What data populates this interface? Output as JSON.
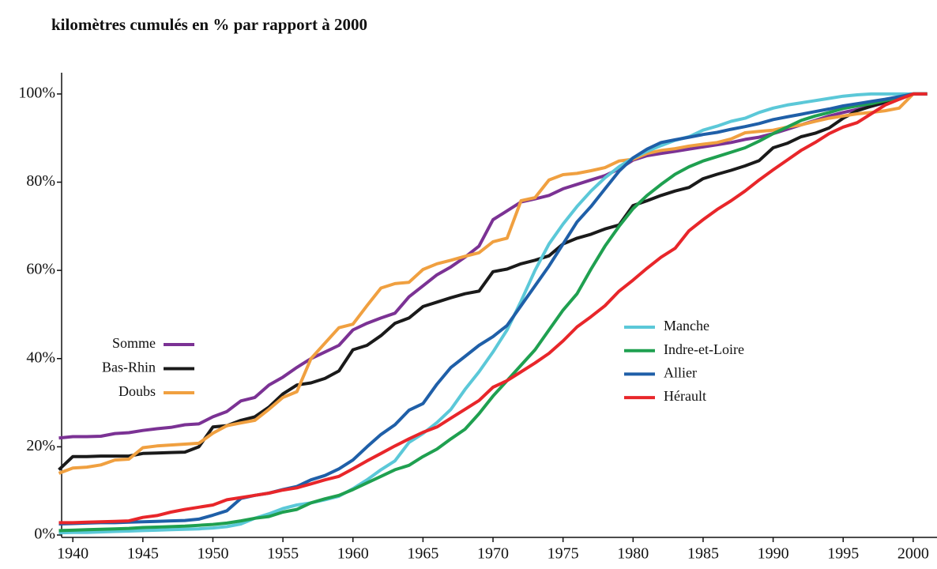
{
  "chart_data": {
    "type": "line",
    "title": "kilomètres cumulés en % par rapport à 2000",
    "x": [
      1939,
      1940,
      1941,
      1942,
      1943,
      1944,
      1945,
      1946,
      1947,
      1948,
      1949,
      1950,
      1951,
      1952,
      1953,
      1954,
      1955,
      1956,
      1957,
      1958,
      1959,
      1960,
      1961,
      1962,
      1963,
      1964,
      1965,
      1966,
      1967,
      1968,
      1969,
      1970,
      1971,
      1972,
      1973,
      1974,
      1975,
      1976,
      1977,
      1978,
      1979,
      1980,
      1981,
      1982,
      1983,
      1984,
      1985,
      1986,
      1987,
      1988,
      1989,
      1990,
      1991,
      1992,
      1993,
      1994,
      1995,
      1996,
      1997,
      1998,
      1999,
      2000,
      2001
    ],
    "xlim": [
      1939.2,
      2001.7
    ],
    "xticks": [
      1940,
      1945,
      1950,
      1955,
      1960,
      1965,
      1970,
      1975,
      1980,
      1985,
      1990,
      1995,
      2000
    ],
    "ylim": [
      0,
      105
    ],
    "yticks": [
      {
        "value": 0,
        "label": "0%"
      },
      {
        "value": 20,
        "label": "20%"
      },
      {
        "value": 40,
        "label": "40%"
      },
      {
        "value": 60,
        "label": "60%"
      },
      {
        "value": 80,
        "label": "80%"
      },
      {
        "value": 100,
        "label": "100%"
      }
    ],
    "series": [
      {
        "name": "Somme",
        "color": "#7b3294",
        "values": [
          22,
          22.3,
          22.3,
          22.4,
          23,
          23.2,
          23.7,
          24.1,
          24.4,
          25,
          25.2,
          26.8,
          28,
          30.4,
          31.2,
          34,
          35.8,
          38,
          40,
          41.5,
          43,
          46.5,
          48,
          49.2,
          50.3,
          54,
          56.5,
          59,
          60.8,
          63,
          65.5,
          71.5,
          73.5,
          75.5,
          76.2,
          77,
          78.5,
          79.5,
          80.5,
          81.5,
          83,
          85,
          86,
          86.5,
          87,
          87.5,
          88,
          88.5,
          89,
          89.7,
          90.2,
          91,
          92,
          93,
          94,
          95,
          95.8,
          96.5,
          97.2,
          98,
          98.8,
          100,
          100
        ]
      },
      {
        "name": "Bas-Rhin",
        "color": "#1a1a1a",
        "values": [
          14.8,
          17.8,
          17.8,
          17.9,
          17.9,
          17.9,
          18.5,
          18.6,
          18.7,
          18.8,
          20,
          24.5,
          24.8,
          26,
          26.8,
          29,
          32,
          34,
          34.5,
          35.5,
          37.2,
          42,
          43,
          45.2,
          48,
          49.2,
          51.8,
          52.8,
          53.8,
          54.7,
          55.3,
          59.7,
          60.3,
          61.5,
          62.3,
          63.3,
          66,
          67.3,
          68.2,
          69.4,
          70.3,
          74.7,
          75.8,
          77,
          78,
          78.8,
          80.8,
          81.8,
          82.7,
          83.7,
          84.9,
          87.8,
          88.8,
          90.3,
          91.1,
          92.3,
          94.5,
          96.2,
          97.2,
          98.2,
          99.2,
          100,
          100
        ]
      },
      {
        "name": "Doubs",
        "color": "#f0a040",
        "values": [
          14,
          15.2,
          15.4,
          15.9,
          17,
          17.2,
          19.8,
          20.2,
          20.4,
          20.6,
          20.8,
          23.1,
          24.8,
          25.4,
          26,
          28.5,
          31.2,
          32.5,
          40,
          43.5,
          47,
          47.8,
          52,
          56,
          57,
          57.3,
          60.2,
          61.5,
          62.3,
          63.2,
          64,
          66.5,
          67.3,
          75.8,
          76.5,
          80.5,
          81.7,
          82,
          82.6,
          83.3,
          84.8,
          85.2,
          86.5,
          87.2,
          87.6,
          88.2,
          88.6,
          89,
          89.8,
          91.2,
          91.5,
          91.8,
          92.5,
          93,
          93.8,
          94.5,
          95,
          95.5,
          95.8,
          96.2,
          96.8,
          100,
          100
        ]
      },
      {
        "name": "Manche",
        "color": "#5bc8d8",
        "values": [
          0.5,
          0.6,
          0.6,
          0.7,
          0.8,
          0.9,
          1,
          1.1,
          1.2,
          1.3,
          1.4,
          1.6,
          1.9,
          2.5,
          3.8,
          4.8,
          6,
          6.8,
          7.3,
          8,
          8.8,
          10.5,
          12.5,
          14.8,
          16.8,
          21,
          23,
          25.5,
          28.5,
          33,
          37,
          41.5,
          46.5,
          53,
          60,
          66,
          70.5,
          74.5,
          78,
          81,
          83.5,
          85.5,
          87,
          88.3,
          89.5,
          90.3,
          91.8,
          92.7,
          93.8,
          94.5,
          95.8,
          96.8,
          97.5,
          98,
          98.5,
          99,
          99.5,
          99.8,
          100,
          100,
          100,
          100,
          100
        ]
      },
      {
        "name": "Indre-et-Loire",
        "color": "#1fa050",
        "values": [
          1,
          1.1,
          1.2,
          1.3,
          1.4,
          1.5,
          1.7,
          1.8,
          1.9,
          2,
          2.2,
          2.4,
          2.7,
          3.2,
          3.8,
          4.2,
          5.2,
          5.8,
          7.3,
          8.2,
          9,
          10.3,
          11.8,
          13.3,
          14.8,
          15.8,
          17.8,
          19.5,
          21.8,
          24,
          27.5,
          31.5,
          35,
          38.5,
          42,
          46.5,
          51,
          54.7,
          60.3,
          65.5,
          70,
          74,
          77,
          79.5,
          81.8,
          83.5,
          84.8,
          85.8,
          86.8,
          87.8,
          89.3,
          91,
          92.5,
          94,
          95,
          95.8,
          96.7,
          97.3,
          97.8,
          98.5,
          99.2,
          100,
          100
        ]
      },
      {
        "name": "Allier",
        "color": "#1f5fa8",
        "values": [
          2.5,
          2.6,
          2.7,
          2.8,
          2.8,
          2.9,
          3,
          3.1,
          3.2,
          3.3,
          3.6,
          4.5,
          5.5,
          8.3,
          9,
          9.5,
          10.3,
          11,
          12.5,
          13.5,
          15,
          17,
          20,
          22.8,
          25,
          28.3,
          29.8,
          34.2,
          38,
          40.5,
          43,
          45,
          47.5,
          52,
          56.5,
          61,
          66,
          71,
          74.5,
          78.5,
          82.5,
          85.5,
          87.5,
          89,
          89.6,
          90.2,
          90.8,
          91.3,
          92,
          92.6,
          93.3,
          94.2,
          94.8,
          95.4,
          96,
          96.6,
          97.3,
          97.8,
          98.3,
          98.8,
          99.4,
          100,
          100
        ]
      },
      {
        "name": "Hérault",
        "color": "#e8262a",
        "values": [
          2.8,
          2.8,
          2.9,
          3,
          3.1,
          3.2,
          4,
          4.4,
          5.2,
          5.8,
          6.3,
          6.8,
          8,
          8.5,
          9,
          9.5,
          10.2,
          10.7,
          11.6,
          12.5,
          13.3,
          15,
          16.8,
          18.5,
          20.2,
          21.8,
          23.3,
          24.5,
          26.5,
          28.5,
          30.5,
          33.5,
          35,
          37,
          39,
          41.2,
          44,
          47.2,
          49.5,
          52,
          55.3,
          57.8,
          60.5,
          63,
          65,
          69,
          71.5,
          73.8,
          75.8,
          78,
          80.5,
          82.8,
          85,
          87.2,
          89,
          91,
          92.5,
          93.5,
          95.5,
          97.5,
          98.8,
          100,
          100
        ]
      }
    ]
  }
}
